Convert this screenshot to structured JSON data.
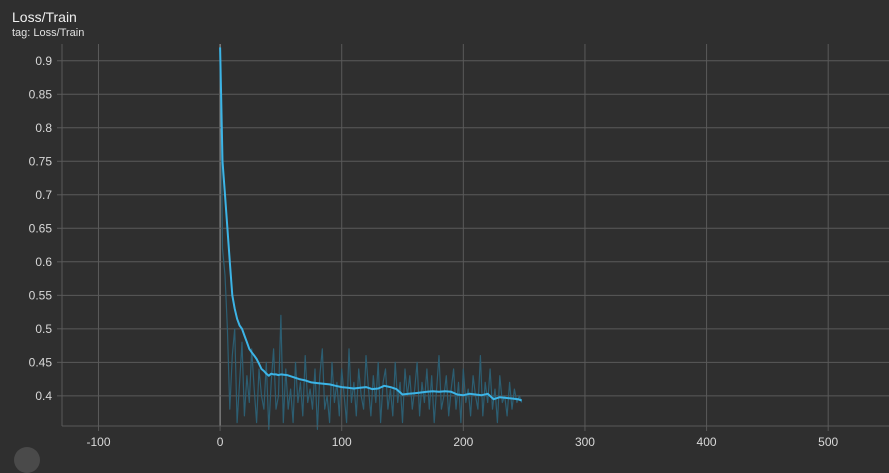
{
  "card": {
    "title": "Loss/Train",
    "subtitle": "tag: Loss/Train"
  },
  "colors": {
    "background": "#2f2f2f",
    "grid": "#5a5a5a",
    "zero_axis": "#a0a0a0",
    "smoothed": "#3cb4e6",
    "raw": "#2c5e72"
  },
  "chart_data": {
    "type": "line",
    "title": "",
    "xlabel": "",
    "ylabel": "",
    "xlim": [
      -130,
      550
    ],
    "ylim": [
      0.355,
      0.925
    ],
    "grid": true,
    "x_ticks": [
      -100,
      0,
      100,
      200,
      300,
      400,
      500
    ],
    "y_ticks": [
      0.4,
      0.45,
      0.5,
      0.55,
      0.6,
      0.65,
      0.7,
      0.75,
      0.8,
      0.85,
      0.9
    ],
    "series": [
      {
        "name": "",
        "role": "raw",
        "x": [
          0,
          2,
          4,
          6,
          8,
          10,
          12,
          14,
          16,
          18,
          20,
          22,
          24,
          26,
          28,
          30,
          32,
          34,
          36,
          38,
          40,
          42,
          44,
          46,
          48,
          50,
          52,
          54,
          56,
          58,
          60,
          62,
          64,
          66,
          68,
          70,
          72,
          74,
          76,
          78,
          80,
          82,
          84,
          86,
          88,
          90,
          92,
          94,
          96,
          98,
          100,
          102,
          104,
          106,
          108,
          110,
          112,
          114,
          116,
          118,
          120,
          122,
          124,
          126,
          128,
          130,
          132,
          134,
          136,
          138,
          140,
          142,
          144,
          146,
          148,
          150,
          152,
          154,
          156,
          158,
          160,
          162,
          164,
          166,
          168,
          170,
          172,
          174,
          176,
          178,
          180,
          182,
          184,
          186,
          188,
          190,
          192,
          194,
          196,
          198,
          200,
          202,
          204,
          206,
          208,
          210,
          212,
          214,
          216,
          218,
          220,
          222,
          224,
          226,
          228,
          230,
          232,
          234,
          236,
          238,
          240,
          242,
          244,
          246,
          248
        ],
        "y": [
          0.92,
          0.62,
          0.58,
          0.5,
          0.38,
          0.46,
          0.5,
          0.36,
          0.42,
          0.48,
          0.37,
          0.43,
          0.39,
          0.47,
          0.41,
          0.36,
          0.44,
          0.4,
          0.38,
          0.45,
          0.35,
          0.42,
          0.47,
          0.38,
          0.4,
          0.52,
          0.36,
          0.44,
          0.38,
          0.41,
          0.36,
          0.45,
          0.39,
          0.42,
          0.37,
          0.46,
          0.39,
          0.41,
          0.38,
          0.44,
          0.35,
          0.43,
          0.47,
          0.38,
          0.4,
          0.36,
          0.45,
          0.39,
          0.42,
          0.37,
          0.44,
          0.4,
          0.36,
          0.47,
          0.39,
          0.42,
          0.37,
          0.44,
          0.4,
          0.38,
          0.46,
          0.41,
          0.37,
          0.43,
          0.39,
          0.45,
          0.36,
          0.42,
          0.44,
          0.38,
          0.41,
          0.37,
          0.45,
          0.39,
          0.42,
          0.36,
          0.44,
          0.4,
          0.43,
          0.38,
          0.41,
          0.45,
          0.37,
          0.42,
          0.39,
          0.44,
          0.38,
          0.43,
          0.36,
          0.41,
          0.46,
          0.38,
          0.4,
          0.43,
          0.37,
          0.41,
          0.44,
          0.38,
          0.42,
          0.36,
          0.44,
          0.39,
          0.41,
          0.37,
          0.43,
          0.4,
          0.38,
          0.46,
          0.37,
          0.42,
          0.39,
          0.44,
          0.38,
          0.41,
          0.36,
          0.43,
          0.39,
          0.4,
          0.37,
          0.42,
          0.38,
          0.41,
          0.39,
          0.4,
          0.39
        ]
      },
      {
        "name": "",
        "role": "smoothed",
        "x": [
          0,
          2,
          4,
          6,
          8,
          10,
          12,
          14,
          16,
          18,
          20,
          22,
          24,
          26,
          28,
          30,
          32,
          34,
          36,
          38,
          40,
          42,
          44,
          46,
          48,
          50,
          55,
          60,
          65,
          70,
          75,
          80,
          85,
          90,
          95,
          100,
          105,
          110,
          115,
          120,
          125,
          130,
          135,
          140,
          145,
          150,
          155,
          160,
          165,
          170,
          175,
          180,
          185,
          190,
          195,
          200,
          205,
          210,
          215,
          220,
          225,
          230,
          235,
          240,
          245,
          248
        ],
        "y": [
          0.92,
          0.75,
          0.7,
          0.65,
          0.6,
          0.55,
          0.53,
          0.515,
          0.505,
          0.5,
          0.49,
          0.48,
          0.47,
          0.465,
          0.46,
          0.455,
          0.448,
          0.44,
          0.437,
          0.433,
          0.43,
          0.433,
          0.432,
          0.432,
          0.431,
          0.432,
          0.431,
          0.428,
          0.425,
          0.423,
          0.42,
          0.419,
          0.418,
          0.417,
          0.415,
          0.413,
          0.412,
          0.411,
          0.412,
          0.413,
          0.41,
          0.411,
          0.415,
          0.413,
          0.41,
          0.402,
          0.403,
          0.404,
          0.405,
          0.406,
          0.407,
          0.406,
          0.407,
          0.406,
          0.402,
          0.401,
          0.403,
          0.402,
          0.401,
          0.403,
          0.395,
          0.398,
          0.397,
          0.396,
          0.395,
          0.393
        ]
      }
    ]
  }
}
